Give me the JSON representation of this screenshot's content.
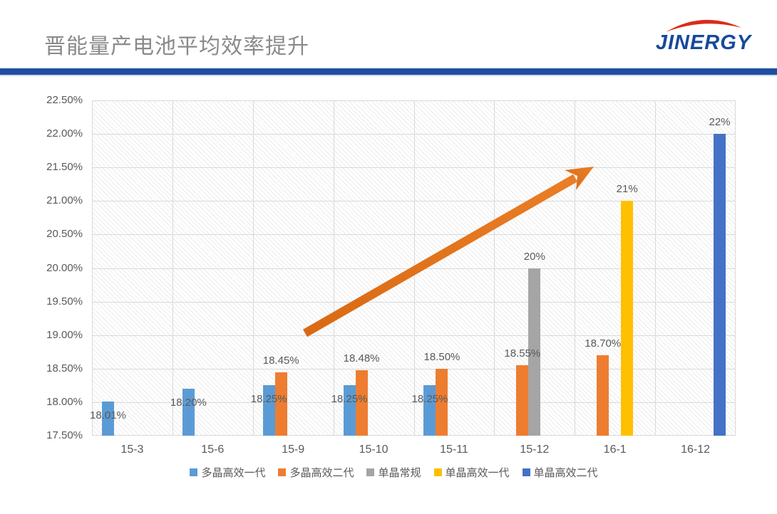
{
  "header": {
    "title": "晋能量产电池平均效率提升",
    "logo_text": "JINERGY"
  },
  "colors": {
    "divider_blue": "#1F4E9F",
    "logo_blue": "#17499D",
    "logo_red": "#DB2B19",
    "title_gray": "#8A8A8A",
    "tick_gray": "#595959",
    "gridline": "#D9D9D9",
    "arrow_orange": "#E2751F"
  },
  "chart_data": {
    "type": "bar",
    "title": "晋能量产电池平均效率提升",
    "categories": [
      "15-3",
      "15-6",
      "15-9",
      "15-10",
      "15-11",
      "15-12",
      "16-1",
      "16-12"
    ],
    "y_axis": {
      "min": 17.5,
      "max": 22.5,
      "step": 0.5,
      "tick_labels": [
        "22.50%",
        "22.00%",
        "21.50%",
        "21.00%",
        "20.50%",
        "20.00%",
        "19.50%",
        "19.00%",
        "18.50%",
        "18.00%",
        "17.50%"
      ]
    },
    "grid": "horizontal and vertical gridlines, hatched plot background",
    "legend_position": "bottom",
    "series": [
      {
        "name": "多晶高效一代",
        "color": "#5B9BD5",
        "slot": 1,
        "label_placement": "inside-top",
        "points": [
          {
            "cat": 0,
            "value": 18.01,
            "label": "18.01%"
          },
          {
            "cat": 1,
            "value": 18.2,
            "label": "18.20%"
          },
          {
            "cat": 2,
            "value": 18.25,
            "label": "18.25%"
          },
          {
            "cat": 3,
            "value": 18.25,
            "label": "18.25%"
          },
          {
            "cat": 4,
            "value": 18.25,
            "label": "18.25%"
          }
        ]
      },
      {
        "name": "多晶高效二代",
        "color": "#ED7D31",
        "slot": 2,
        "label_placement": "above",
        "points": [
          {
            "cat": 2,
            "value": 18.45,
            "label": "18.45%"
          },
          {
            "cat": 3,
            "value": 18.48,
            "label": "18.48%"
          },
          {
            "cat": 4,
            "value": 18.5,
            "label": "18.50%"
          },
          {
            "cat": 5,
            "value": 18.55,
            "label": "18.55%"
          },
          {
            "cat": 6,
            "value": 18.7,
            "label": "18.70%"
          }
        ]
      },
      {
        "name": "单晶常规",
        "color": "#A5A5A5",
        "slot": 3,
        "label_placement": "above",
        "points": [
          {
            "cat": 5,
            "value": 20,
            "label": "20%"
          }
        ]
      },
      {
        "name": "单晶高效一代",
        "color": "#FFC000",
        "slot": 4,
        "label_placement": "above",
        "points": [
          {
            "cat": 6,
            "value": 21,
            "label": "21%"
          }
        ]
      },
      {
        "name": "单晶高效二代",
        "color": "#4472C4",
        "slot": 5,
        "label_placement": "above",
        "points": [
          {
            "cat": 7,
            "value": 22,
            "label": "22%"
          }
        ]
      }
    ],
    "annotations": [
      "orange upward trend arrow from lower-left to upper-right of plot"
    ]
  }
}
